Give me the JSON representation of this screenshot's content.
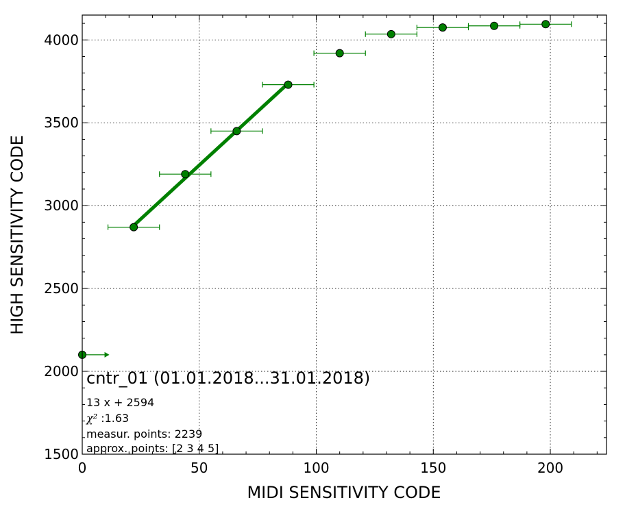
{
  "chart_data": {
    "type": "scatter",
    "title": "",
    "xlabel": "MIDI SENSITIVITY CODE",
    "ylabel": "HIGH SENSITIVITY CODE",
    "xlim": [
      0,
      224
    ],
    "ylim": [
      1500,
      4150
    ],
    "x_ticks": [
      0,
      50,
      100,
      150,
      200
    ],
    "y_ticks": [
      1500,
      2000,
      2500,
      3000,
      3500,
      4000
    ],
    "x_tick_labels": [
      "0",
      "50",
      "100",
      "150",
      "200"
    ],
    "y_tick_labels": [
      "1500",
      "2000",
      "2500",
      "3000",
      "3500",
      "4000"
    ],
    "grid": true,
    "series": [
      {
        "marker": "circle",
        "color": "#008000",
        "points": [
          {
            "x": 0,
            "y": 2100,
            "xerr_low": 0,
            "xerr_high": 11
          },
          {
            "x": 22,
            "y": 2870,
            "xerr_low": 11,
            "xerr_high": 11
          },
          {
            "x": 44,
            "y": 3190,
            "xerr_low": 11,
            "xerr_high": 11
          },
          {
            "x": 66,
            "y": 3450,
            "xerr_low": 11,
            "xerr_high": 11
          },
          {
            "x": 88,
            "y": 3730,
            "xerr_low": 11,
            "xerr_high": 11
          },
          {
            "x": 110,
            "y": 3920,
            "xerr_low": 11,
            "xerr_high": 11
          },
          {
            "x": 132,
            "y": 4035,
            "xerr_low": 11,
            "xerr_high": 11
          },
          {
            "x": 154,
            "y": 4075,
            "xerr_low": 11,
            "xerr_high": 11
          },
          {
            "x": 176,
            "y": 4085,
            "xerr_low": 11,
            "xerr_high": 11
          },
          {
            "x": 198,
            "y": 4095,
            "xerr_low": 11,
            "xerr_high": 11
          }
        ]
      }
    ],
    "fit_line": {
      "color": "#008000",
      "slope": 13,
      "intercept": 2594,
      "x_range": [
        22,
        88
      ]
    },
    "annotations": {
      "title": "cntr_01 (01.01.2018...31.01.2018)",
      "equation": "13 x + 2594",
      "chi_symbol": "χ²",
      "chi_value": " :1.63",
      "measur_points": "measur. points: 2239",
      "approx_points": "approx. points: [2 3 4 5]"
    }
  }
}
